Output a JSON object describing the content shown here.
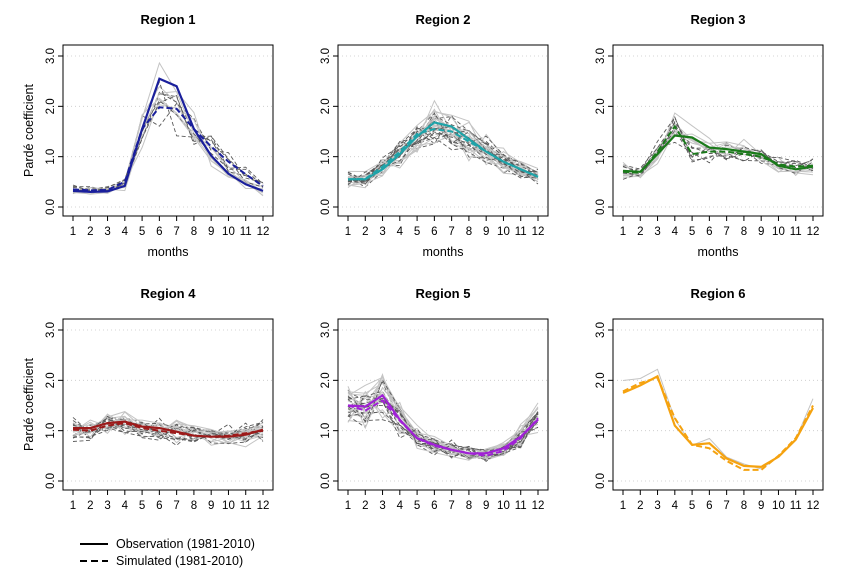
{
  "chart_data": {
    "type": "line",
    "x": [
      1,
      2,
      3,
      4,
      5,
      6,
      7,
      8,
      9,
      10,
      11,
      12
    ],
    "xlabel": "months",
    "ylabel": "Pardé coefficient",
    "ylim": [
      0,
      3
    ],
    "yticks": [
      "0.0",
      "1.0",
      "2.0",
      "3.0"
    ],
    "xticks": [
      "1",
      "2",
      "3",
      "4",
      "5",
      "6",
      "7",
      "8",
      "9",
      "10",
      "11",
      "12"
    ],
    "grid": "dotted horizontal",
    "legend": {
      "placement": "bottom-left",
      "entries": [
        "Observation (1981-2010)",
        "Simulated (1981-2010)"
      ]
    },
    "panels": [
      {
        "title": "Region 1",
        "color": "#1a1f9c",
        "show_ylabel": true,
        "show_xlabel": true,
        "n_ensemble": 12,
        "observation": [
          0.32,
          0.3,
          0.31,
          0.42,
          1.55,
          2.55,
          2.4,
          1.55,
          1.02,
          0.66,
          0.45,
          0.32
        ],
        "simulated": [
          0.35,
          0.33,
          0.34,
          0.5,
          1.55,
          1.98,
          1.95,
          1.55,
          1.2,
          0.9,
          0.65,
          0.42
        ]
      },
      {
        "title": "Region 2",
        "color": "#1fa3a8",
        "show_ylabel": false,
        "show_xlabel": true,
        "n_ensemble": 30,
        "observation": [
          0.55,
          0.55,
          0.75,
          1.05,
          1.4,
          1.68,
          1.6,
          1.35,
          1.1,
          0.9,
          0.75,
          0.6
        ],
        "simulated": [
          0.55,
          0.56,
          0.8,
          1.1,
          1.45,
          1.55,
          1.5,
          1.3,
          1.1,
          0.9,
          0.75,
          0.6
        ]
      },
      {
        "title": "Region 3",
        "color": "#1a7a1a",
        "show_ylabel": false,
        "show_xlabel": true,
        "n_ensemble": 14,
        "observation": [
          0.72,
          0.7,
          1.05,
          1.42,
          1.38,
          1.18,
          1.15,
          1.1,
          1.05,
          0.82,
          0.75,
          0.8
        ],
        "simulated": [
          0.7,
          0.68,
          1.1,
          1.6,
          1.05,
          1.1,
          1.1,
          1.05,
          1.0,
          0.85,
          0.8,
          0.82
        ]
      },
      {
        "title": "Region 4",
        "color": "#9c1a1a",
        "show_ylabel": true,
        "show_xlabel": false,
        "n_ensemble": 24,
        "observation": [
          1.05,
          1.05,
          1.15,
          1.18,
          1.08,
          1.05,
          0.98,
          0.9,
          0.88,
          0.88,
          0.92,
          1.02
        ],
        "simulated": [
          1.02,
          1.0,
          1.1,
          1.15,
          1.05,
          1.0,
          0.95,
          0.9,
          0.88,
          0.9,
          0.95,
          1.0
        ]
      },
      {
        "title": "Region 5",
        "color": "#a020d6",
        "show_ylabel": false,
        "show_xlabel": false,
        "n_ensemble": 30,
        "observation": [
          1.5,
          1.48,
          1.7,
          1.22,
          0.85,
          0.72,
          0.62,
          0.55,
          0.55,
          0.65,
          0.88,
          1.22
        ],
        "simulated": [
          1.5,
          1.4,
          1.6,
          1.2,
          0.85,
          0.7,
          0.62,
          0.55,
          0.5,
          0.6,
          0.85,
          1.25
        ]
      },
      {
        "title": "Region 6",
        "color": "#f5a20f",
        "show_ylabel": false,
        "show_xlabel": false,
        "n_ensemble": 1,
        "observation": [
          1.75,
          1.9,
          2.08,
          1.1,
          0.72,
          0.75,
          0.45,
          0.3,
          0.28,
          0.48,
          0.82,
          1.45
        ],
        "simulated": [
          1.78,
          1.95,
          2.05,
          1.25,
          0.72,
          0.65,
          0.4,
          0.22,
          0.22,
          0.5,
          0.85,
          1.5
        ]
      }
    ]
  }
}
